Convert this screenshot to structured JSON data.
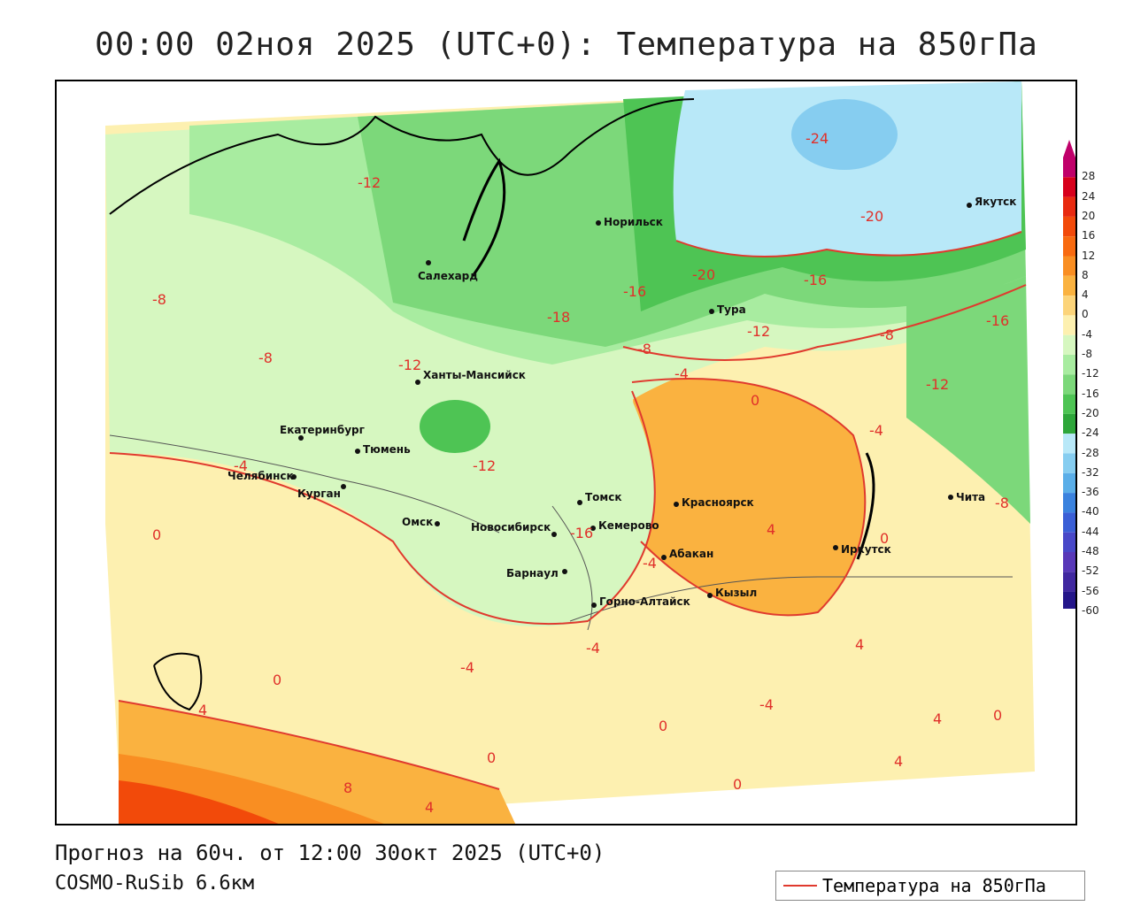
{
  "title": "00:00 02ноя 2025 (UTC+0): Температура на 850гПа",
  "footer": {
    "forecast": "Прогноз на 60ч. от 12:00 30окт 2025 (UTC+0)",
    "model": "COSMO-RuSib 6.6км"
  },
  "legend": {
    "label": "Температура на 850гПа",
    "line_color": "#e03a2e"
  },
  "colorbar": {
    "labels": [
      "28",
      "24",
      "20",
      "16",
      "12",
      "8",
      "4",
      "0",
      "-4",
      "-8",
      "-12",
      "-16",
      "-20",
      "-24",
      "-28",
      "-32",
      "-36",
      "-40",
      "-44",
      "-48",
      "-52",
      "-56",
      "-60"
    ],
    "colors": [
      "#c0006a",
      "#d7001c",
      "#e82a10",
      "#f24a0a",
      "#f86a10",
      "#f98e22",
      "#fab240",
      "#fcd47a",
      "#fdf0b0",
      "#d6f7c0",
      "#a8eca0",
      "#7cd87a",
      "#4ec454",
      "#2ea63a",
      "#b8e8f8",
      "#86cdf0",
      "#5aaee8",
      "#3a82de",
      "#3a5fd6",
      "#4848c8",
      "#5838b8",
      "#4028a0",
      "#24168a",
      "#8a20c0"
    ]
  },
  "cities": [
    {
      "name": "Норильск"
    },
    {
      "name": "Якутск"
    },
    {
      "name": "Салехард"
    },
    {
      "name": "Тура"
    },
    {
      "name": "Ханты-Мансийск"
    },
    {
      "name": "Екатеринбург"
    },
    {
      "name": "Тюмень"
    },
    {
      "name": "Челябинск"
    },
    {
      "name": "Курган"
    },
    {
      "name": "Омск"
    },
    {
      "name": "Новосибирск"
    },
    {
      "name": "Томск"
    },
    {
      "name": "Кемерово"
    },
    {
      "name": "Красноярск"
    },
    {
      "name": "Абакан"
    },
    {
      "name": "Барнаул"
    },
    {
      "name": "Горно-Алтайск"
    },
    {
      "name": "Кызыл"
    },
    {
      "name": "Иркутск"
    },
    {
      "name": "Чита"
    }
  ],
  "isolines": [
    "-24",
    "-20",
    "-20",
    "-16",
    "-16",
    "-16",
    "-18",
    "-12",
    "-12",
    "-12",
    "-12",
    "-12",
    "-8",
    "-8",
    "-8",
    "-8",
    "-8",
    "-4",
    "-4",
    "-4",
    "-4",
    "-4",
    "-4",
    "-4",
    "0",
    "0",
    "0",
    "0",
    "0",
    "0",
    "0",
    "0",
    "4",
    "4",
    "4",
    "4",
    "4",
    "8",
    "4",
    "-16"
  ]
}
